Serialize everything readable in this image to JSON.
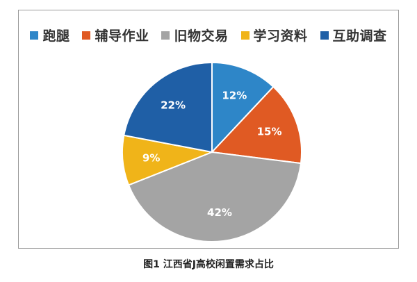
{
  "chart_data": {
    "type": "pie",
    "categories": [
      "跑腿",
      "辅导作业",
      "旧物交易",
      "学习资料",
      "互助调查"
    ],
    "values": [
      12,
      15,
      42,
      9,
      22
    ],
    "value_labels": [
      "12%",
      "15%",
      "42%",
      "9%",
      "22%"
    ],
    "colors": [
      "#2e86c8",
      "#e05a23",
      "#a4a4a4",
      "#f0b419",
      "#1f5fa6"
    ],
    "legend_position": "top"
  },
  "caption": "图1 江西省J高校闲置需求占比"
}
